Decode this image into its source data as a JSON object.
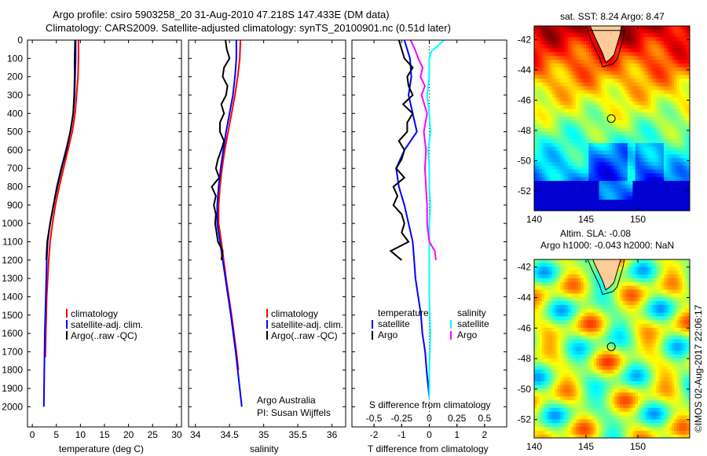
{
  "title_line1": "Argo profile: csiro 5903258_20 31-Aug-2010 47.218S 147.433E (DM data)",
  "title_line2": "Climatology: CARS2009. Satellite-adjusted climatology: synTS_20100901.nc (0.51d later)",
  "copyright": "©IMOS 02-Aug-2017 22:06:17",
  "colors": {
    "climatology": "#ff0000",
    "satellite": "#0000ff",
    "argo": "#000000",
    "s_satellite": "#00ffff",
    "s_argo": "#ff00ff",
    "land": "#ffcc99"
  },
  "chart_data": [
    {
      "type": "line",
      "name": "temperature",
      "xlabel": "temperature (deg C)",
      "xlim": [
        -1,
        31
      ],
      "ylim": [
        0,
        2110
      ],
      "y_reversed": true,
      "xticks": [
        "0",
        "5",
        "10",
        "15",
        "20",
        "25",
        "30"
      ],
      "xtick_values": [
        0,
        5,
        10,
        15,
        20,
        25,
        30
      ],
      "yticks": [
        "0",
        "100",
        "200",
        "300",
        "400",
        "500",
        "600",
        "700",
        "800",
        "900",
        "1000",
        "1100",
        "1200",
        "1300",
        "1400",
        "1500",
        "1600",
        "1700",
        "1800",
        "1900",
        "2000"
      ],
      "legend": [
        "climatology",
        "satellite-adj. clim.",
        "Argo(..raw -QC)"
      ],
      "series": [
        {
          "name": "climatology",
          "color": "#ff0000",
          "depth": [
            0,
            100,
            200,
            300,
            400,
            500,
            600,
            700,
            800,
            900,
            1000,
            1100,
            1200,
            1400,
            1600,
            1730
          ],
          "values": [
            9.6,
            9.6,
            9.5,
            9.2,
            8.9,
            8.3,
            7.4,
            6.5,
            5.6,
            4.8,
            4.2,
            3.7,
            3.4,
            3.0,
            2.8,
            2.7
          ]
        },
        {
          "name": "satellite-adj. clim.",
          "color": "#0000ff",
          "depth": [
            0,
            100,
            200,
            300,
            400,
            500,
            600,
            700,
            800,
            900,
            1000,
            1100,
            1200,
            1400,
            1600,
            1800,
            2000
          ],
          "values": [
            9.0,
            9.0,
            8.9,
            8.8,
            8.5,
            7.9,
            7.0,
            6.0,
            5.1,
            4.4,
            3.7,
            3.2,
            3.0,
            2.8,
            2.6,
            2.5,
            2.4
          ]
        },
        {
          "name": "Argo(..raw -QC)",
          "color": "#000000",
          "depth": [
            0,
            100,
            200,
            300,
            400,
            500,
            600,
            700,
            800,
            900,
            1000,
            1100,
            1200
          ],
          "values": [
            8.9,
            8.8,
            8.8,
            8.7,
            8.5,
            7.9,
            7.1,
            6.1,
            5.2,
            4.4,
            3.7,
            3.1,
            2.9
          ]
        }
      ]
    },
    {
      "type": "line",
      "name": "salinity",
      "xlabel": "salinity",
      "xlim": [
        33.9,
        36.2
      ],
      "ylim": [
        0,
        2110
      ],
      "y_reversed": true,
      "xticks": [
        "34",
        "34.5",
        "35",
        "35.5",
        "36"
      ],
      "xtick_values": [
        34,
        34.5,
        35,
        35.5,
        36
      ],
      "legend": [
        "climatology",
        "satellite-adj. clim.",
        "Argo(..raw -QC)"
      ],
      "annotation": [
        "Argo Australia",
        "PI: Susan Wijffels"
      ],
      "series": [
        {
          "name": "climatology",
          "color": "#ff0000",
          "depth": [
            0,
            100,
            200,
            300,
            400,
            500,
            600,
            700,
            800,
            900,
            1000,
            1100,
            1300,
            1500,
            1700,
            1800
          ],
          "values": [
            34.66,
            34.65,
            34.62,
            34.58,
            34.53,
            34.48,
            34.43,
            34.39,
            34.36,
            34.34,
            34.34,
            34.38,
            34.45,
            34.53,
            34.6,
            34.63
          ]
        },
        {
          "name": "satellite-adj. clim.",
          "color": "#0000ff",
          "depth": [
            0,
            100,
            200,
            300,
            400,
            500,
            600,
            700,
            800,
            900,
            1000,
            1100,
            1300,
            1500,
            1700,
            1900,
            2000
          ],
          "values": [
            34.6,
            34.6,
            34.58,
            34.55,
            34.5,
            34.45,
            34.41,
            34.37,
            34.34,
            34.32,
            34.32,
            34.36,
            34.44,
            34.52,
            34.59,
            34.65,
            34.68
          ]
        },
        {
          "name": "Argo(..raw -QC)",
          "color": "#000000",
          "depth": [
            0,
            50,
            100,
            150,
            200,
            250,
            300,
            350,
            400,
            450,
            500,
            550,
            600,
            650,
            700,
            750,
            800,
            850,
            900,
            950,
            1000,
            1050,
            1100,
            1150,
            1200
          ],
          "values": [
            34.44,
            34.46,
            34.5,
            34.42,
            34.4,
            34.47,
            34.45,
            34.38,
            34.42,
            34.36,
            34.36,
            34.42,
            34.38,
            34.33,
            34.3,
            34.35,
            34.24,
            34.3,
            34.27,
            34.3,
            34.29,
            34.31,
            34.33,
            34.4,
            34.38
          ]
        }
      ]
    },
    {
      "type": "line",
      "name": "difference",
      "xlabel": "T difference from climatology",
      "x2label": "S difference from climatology",
      "xlim": [
        -2.8,
        2.8
      ],
      "x2lim": [
        -0.7,
        0.7
      ],
      "ylim": [
        0,
        2110
      ],
      "y_reversed": true,
      "xticks": [
        "-2",
        "-1",
        "0",
        "1",
        "2"
      ],
      "xtick_values": [
        -2,
        -1,
        0,
        1,
        2
      ],
      "x2ticks": [
        "-0.5",
        "-0.25",
        "0",
        "0.25",
        "0.5"
      ],
      "x2tick_values": [
        -0.5,
        -0.25,
        0,
        0.25,
        0.5
      ],
      "legend_titles": [
        "temperature",
        "salinity"
      ],
      "legend": [
        "satellite",
        "Argo",
        "satellite",
        "Argo"
      ],
      "series": [
        {
          "name": "T satellite",
          "axis": "T",
          "color": "#0000ff",
          "depth": [
            0,
            100,
            200,
            300,
            400,
            500,
            600,
            700,
            800,
            900,
            1000,
            1100,
            1200,
            1300,
            1400,
            1500,
            1600,
            1700,
            1800,
            1950
          ],
          "values": [
            -0.9,
            -0.7,
            -0.65,
            -0.75,
            -0.6,
            -0.45,
            -0.9,
            -1.2,
            -1.1,
            -0.9,
            -0.75,
            -0.6,
            -0.55,
            -0.5,
            -0.4,
            -0.3,
            -0.25,
            -0.15,
            -0.1,
            0
          ]
        },
        {
          "name": "T Argo",
          "axis": "T",
          "color": "#000000",
          "depth": [
            0,
            50,
            100,
            150,
            200,
            250,
            300,
            350,
            400,
            450,
            500,
            550,
            600,
            650,
            700,
            750,
            800,
            850,
            900,
            950,
            1000,
            1050,
            1100,
            1150,
            1200
          ],
          "values": [
            -1.1,
            -1.0,
            -0.9,
            -0.6,
            -0.8,
            -0.75,
            -0.6,
            -0.95,
            -0.6,
            -0.8,
            -0.8,
            -1.1,
            -0.9,
            -1.0,
            -1.2,
            -0.9,
            -1.3,
            -1.15,
            -1.3,
            -1.0,
            -0.9,
            -1.0,
            -0.75,
            -1.4,
            -1.0
          ]
        },
        {
          "name": "S satellite",
          "axis": "S",
          "color": "#00ffff",
          "depth": [
            0,
            30,
            60,
            100,
            200,
            300,
            400,
            500,
            600,
            700,
            800,
            900,
            1000,
            1200,
            1400,
            1600,
            1800,
            1950
          ],
          "values": [
            0.13,
            0.08,
            0.02,
            0.0,
            0.0,
            -0.02,
            0.0,
            0.01,
            -0.01,
            0.0,
            0.0,
            0.01,
            0.0,
            0.0,
            0.0,
            0.01,
            0.0,
            0.0
          ]
        },
        {
          "name": "S Argo",
          "axis": "S",
          "color": "#ff00ff",
          "depth": [
            0,
            50,
            100,
            150,
            200,
            250,
            300,
            400,
            500,
            600,
            700,
            800,
            900,
            1000,
            1100,
            1150,
            1200
          ],
          "values": [
            -0.17,
            -0.13,
            -0.1,
            -0.06,
            -0.08,
            -0.04,
            -0.07,
            -0.02,
            -0.05,
            -0.03,
            -0.04,
            -0.03,
            -0.02,
            -0.02,
            0.0,
            0.05,
            0.06
          ]
        }
      ]
    },
    {
      "type": "heatmap",
      "name": "sst_map",
      "title": "sat. SST: 8.24  Argo: 8.47",
      "xlim": [
        140,
        155
      ],
      "ylim": [
        -53.3,
        -41.1
      ],
      "xticks": [
        "140",
        "145",
        "150"
      ],
      "xtick_values": [
        140,
        145,
        150
      ],
      "yticks": [
        "-42",
        "-44",
        "-46",
        "-48",
        "-50",
        "-52"
      ],
      "ytick_values": [
        -42,
        -44,
        -46,
        -48,
        -50,
        -52
      ],
      "float_position": [
        147.433,
        -47.218
      ]
    },
    {
      "type": "heatmap",
      "name": "sla_map",
      "title": [
        "Altim. SLA: -0.08",
        "Argo h1000: -0.043 h2000: NaN"
      ],
      "xlim": [
        140,
        155
      ],
      "ylim": [
        -53.2,
        -41.5
      ],
      "xticks": [
        "140",
        "145",
        "150"
      ],
      "xtick_values": [
        140,
        145,
        150
      ],
      "yticks": [
        "-42",
        "-44",
        "-46",
        "-48",
        "-50",
        "-52"
      ],
      "ytick_values": [
        -42,
        -44,
        -46,
        -48,
        -50,
        -52
      ],
      "float_position": [
        147.433,
        -47.218
      ]
    }
  ]
}
